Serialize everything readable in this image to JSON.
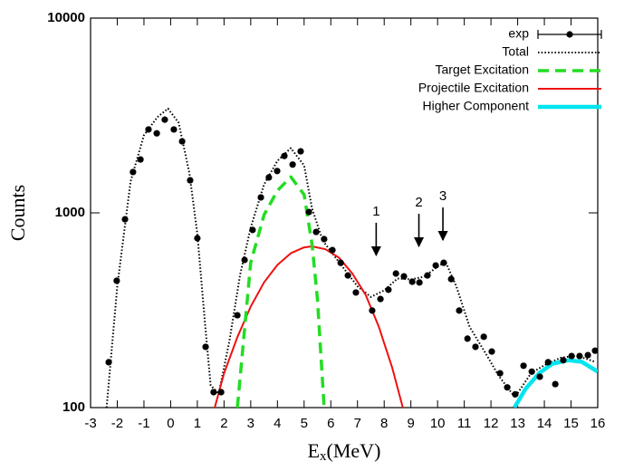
{
  "chart_data": {
    "type": "line",
    "xlabel": [
      "E",
      "x",
      "(MeV)"
    ],
    "ylabel": "Counts",
    "xlim": [
      -3,
      16
    ],
    "ylim": [
      100,
      10000
    ],
    "ylog": true,
    "xticks": [
      -3,
      -2,
      -1,
      0,
      1,
      2,
      3,
      4,
      5,
      6,
      7,
      8,
      9,
      10,
      11,
      12,
      13,
      14,
      15,
      16
    ],
    "yticks": [
      100,
      1000,
      10000
    ],
    "legend": "top-right",
    "series": [
      {
        "name": "exp",
        "color": "#000000",
        "style": "points",
        "x": [
          -2.32,
          -2.02,
          -1.71,
          -1.41,
          -1.13,
          -0.83,
          -0.52,
          -0.22,
          0.12,
          0.43,
          0.73,
          1.0,
          1.31,
          1.61,
          1.89,
          2.5,
          2.77,
          3.07,
          3.38,
          3.68,
          3.99,
          4.26,
          4.57,
          4.87,
          5.18,
          5.45,
          5.75,
          6.06,
          6.37,
          6.64,
          6.94,
          7.55,
          7.86,
          8.16,
          8.44,
          8.74,
          9.05,
          9.32,
          9.62,
          9.93,
          10.23,
          10.51,
          10.81,
          11.12,
          11.42,
          11.73,
          12.03,
          12.34,
          12.61,
          12.91,
          13.22,
          13.53,
          13.83,
          14.14,
          14.41,
          14.71,
          15.02,
          15.32,
          15.63,
          15.9
        ],
        "values": [
          171,
          448,
          927,
          1620,
          1880,
          2680,
          2560,
          3010,
          2680,
          2330,
          1470,
          741,
          205,
          120,
          120,
          298,
          573,
          817,
          1200,
          1520,
          1640,
          1960,
          1770,
          2070,
          1010,
          798,
          733,
          644,
          554,
          477,
          390,
          315,
          361,
          403,
          488,
          472,
          443,
          439,
          477,
          537,
          554,
          457,
          315,
          226,
          205,
          231,
          194,
          150,
          127,
          117,
          164,
          153,
          144,
          171,
          132,
          175,
          184,
          184,
          186,
          196
        ]
      },
      {
        "name": "Total",
        "color": "#000000",
        "style": "dotted",
        "x": [
          -2.4,
          -2.0,
          -1.5,
          -1.0,
          -0.5,
          -0.1,
          0.3,
          0.7,
          1.0,
          1.3,
          1.5,
          1.8,
          2.2,
          2.6,
          3.0,
          3.5,
          4.0,
          4.5,
          5.0,
          5.3,
          5.7,
          6.3,
          7.0,
          7.5,
          8.0,
          8.5,
          9.0,
          9.5,
          10.0,
          10.3,
          10.7,
          11.2,
          11.8,
          12.3,
          12.9,
          13.5,
          14.0,
          14.6,
          15.2,
          15.9
        ],
        "values": [
          100,
          420,
          1450,
          2500,
          3100,
          3430,
          2900,
          1600,
          780,
          260,
          130,
          118,
          220,
          480,
          840,
          1400,
          1850,
          2150,
          1750,
          1050,
          720,
          560,
          420,
          370,
          400,
          460,
          455,
          470,
          530,
          560,
          420,
          260,
          190,
          145,
          113,
          150,
          165,
          180,
          185,
          172
        ]
      },
      {
        "name": "Target Excitation",
        "color": "#22dd22",
        "style": "dashed",
        "x": [
          2.5,
          3.0,
          3.5,
          4.0,
          4.5,
          5.0,
          5.3,
          5.5,
          5.75
        ],
        "values": [
          100,
          555,
          977,
          1300,
          1530,
          1240,
          687,
          361,
          100
        ]
      },
      {
        "name": "Projectile Excitation",
        "color": "#ee1111",
        "style": "solid",
        "x": [
          1.65,
          2.0,
          2.5,
          3.0,
          3.5,
          4.0,
          4.5,
          5.0,
          5.3,
          5.8,
          6.3,
          6.8,
          7.3,
          7.8,
          8.3,
          8.7
        ],
        "values": [
          100,
          150,
          230,
          330,
          440,
          540,
          620,
          665,
          673,
          650,
          590,
          490,
          380,
          260,
          160,
          100
        ]
      },
      {
        "name": "Higher Component",
        "color": "#00e5ee",
        "style": "thick",
        "x": [
          12.88,
          13.3,
          13.8,
          14.3,
          14.9,
          15.4,
          16.0
        ],
        "values": [
          100,
          125,
          150,
          168,
          175,
          172,
          153
        ]
      }
    ],
    "annotations": [
      {
        "text": "1",
        "x": 7.7,
        "y": 605
      },
      {
        "text": "2",
        "x": 9.3,
        "y": 673
      },
      {
        "text": "3",
        "x": 10.2,
        "y": 725
      }
    ]
  }
}
